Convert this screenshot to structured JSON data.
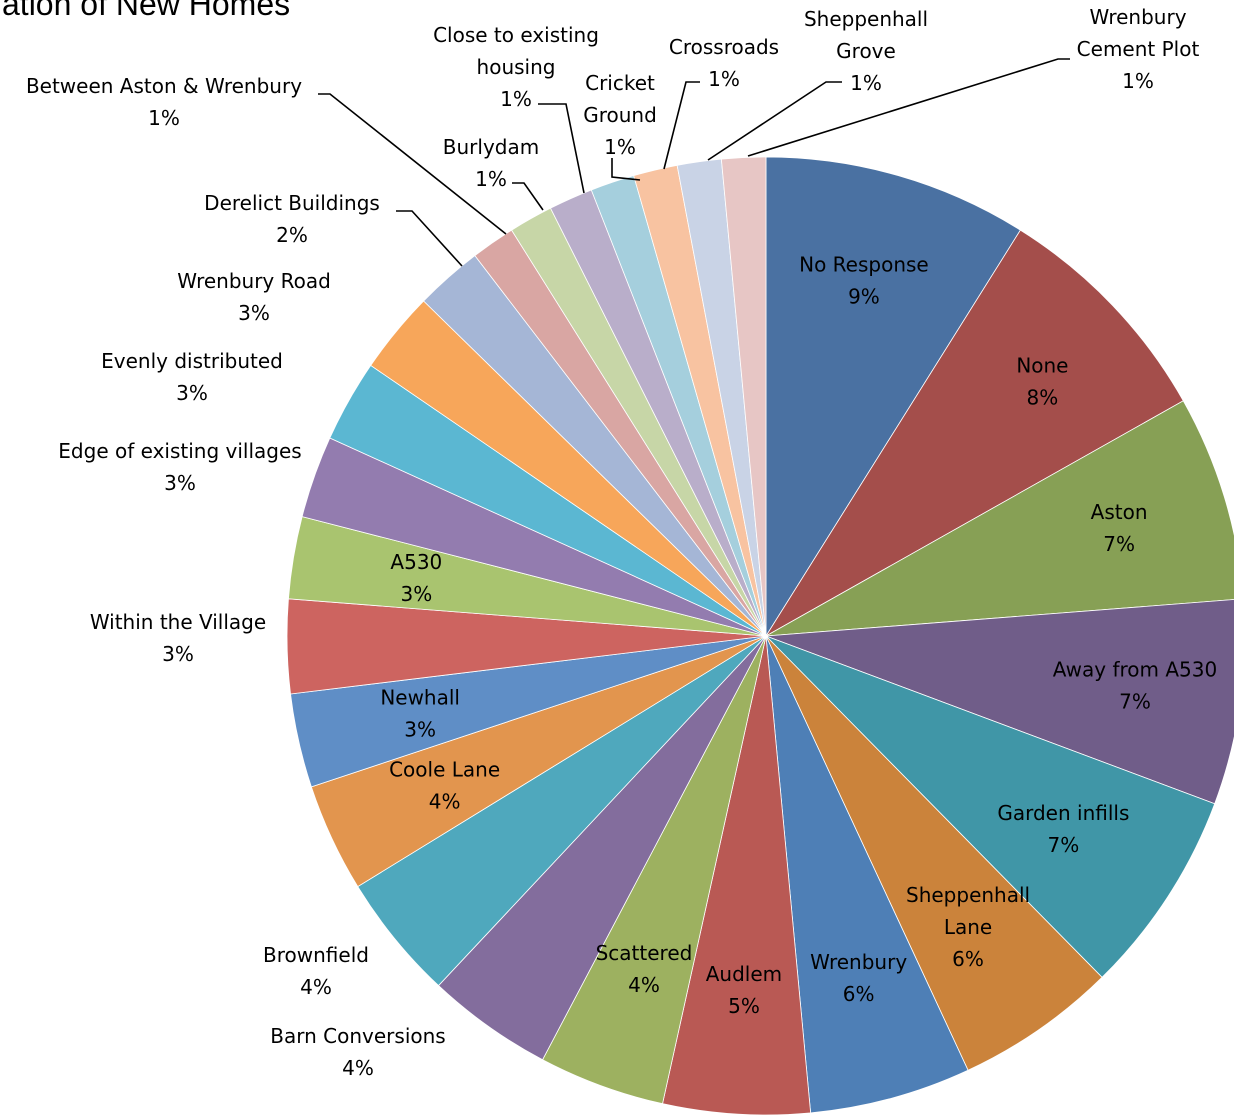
{
  "chart_data": {
    "type": "pie",
    "title": "ation of New Homes",
    "slices": [
      {
        "label": "No Response",
        "value": 9,
        "pct_text": "9%",
        "color": "#4A71A2",
        "inside": true
      },
      {
        "label": "None",
        "value": 8,
        "pct_text": "8%",
        "color": "#A44E4B",
        "inside": true
      },
      {
        "label": "Aston",
        "value": 7,
        "pct_text": "7%",
        "color": "#87A055",
        "inside": true
      },
      {
        "label": "Away from A530",
        "value": 7,
        "pct_text": "7%",
        "color": "#705D89",
        "inside": true
      },
      {
        "label": "Garden infills",
        "value": 7,
        "pct_text": "7%",
        "color": "#4096A7",
        "inside": true
      },
      {
        "label": "Sheppenhall Lane",
        "value": 5.5,
        "pct_text": "6%",
        "color": "#CB833B",
        "inside": true
      },
      {
        "label": "Wrenbury",
        "value": 5.5,
        "pct_text": "6%",
        "color": "#4E7FB6",
        "inside": true
      },
      {
        "label": "Audlem",
        "value": 5,
        "pct_text": "5%",
        "color": "#B95954",
        "inside": true
      },
      {
        "label": "Scattered",
        "value": 4.3,
        "pct_text": "4%",
        "color": "#9DB160",
        "inside": true
      },
      {
        "label": "Barn Conversions",
        "value": 4.3,
        "pct_text": "4%",
        "color": "#836D9D",
        "inside": false
      },
      {
        "label": "Brownfield",
        "value": 4.3,
        "pct_text": "4%",
        "color": "#4FA8BD",
        "inside": false
      },
      {
        "label": "Coole Lane",
        "value": 3.7,
        "pct_text": "4%",
        "color": "#E2954E",
        "inside": true
      },
      {
        "label": "Newhall",
        "value": 3.2,
        "pct_text": "3%",
        "color": "#5F8EC6",
        "inside": true
      },
      {
        "label": "Within the Village",
        "value": 3.2,
        "pct_text": "3%",
        "color": "#CD6460",
        "inside": false
      },
      {
        "label": "A530",
        "value": 2.8,
        "pct_text": "3%",
        "color": "#A9C46F",
        "inside": true
      },
      {
        "label": "Edge of existing villages",
        "value": 2.8,
        "pct_text": "3%",
        "color": "#937CAF",
        "inside": false
      },
      {
        "label": "Evenly distributed",
        "value": 2.8,
        "pct_text": "3%",
        "color": "#5BB7D2",
        "inside": false
      },
      {
        "label": "Wrenbury Road",
        "value": 2.8,
        "pct_text": "3%",
        "color": "#F7A65A",
        "inside": false
      },
      {
        "label": "Derelict Buildings",
        "value": 2.3,
        "pct_text": "2%",
        "color": "#A5B6D6",
        "inside": false
      },
      {
        "label": "Between Aston & Wrenbury",
        "value": 1.5,
        "pct_text": "1%",
        "color": "#D9A6A3",
        "inside": false
      },
      {
        "label": "Burlydam",
        "value": 1.5,
        "pct_text": "1%",
        "color": "#C7D6A7",
        "inside": false
      },
      {
        "label": "Close to existing housing",
        "value": 1.5,
        "pct_text": "1%",
        "color": "#B9AECA",
        "inside": false
      },
      {
        "label": "Cricket Ground",
        "value": 1.5,
        "pct_text": "1%",
        "color": "#A5CFDD",
        "inside": false
      },
      {
        "label": "Crossroads",
        "value": 1.5,
        "pct_text": "1%",
        "color": "#F8C3A1",
        "inside": false
      },
      {
        "label": "Sheppenhall Grove",
        "value": 1.5,
        "pct_text": "1%",
        "color": "#C9D3E6",
        "inside": false
      },
      {
        "label": "Wrenbury Cement Plot",
        "value": 1.5,
        "pct_text": "1%",
        "color": "#E7C6C5",
        "inside": false
      }
    ]
  }
}
